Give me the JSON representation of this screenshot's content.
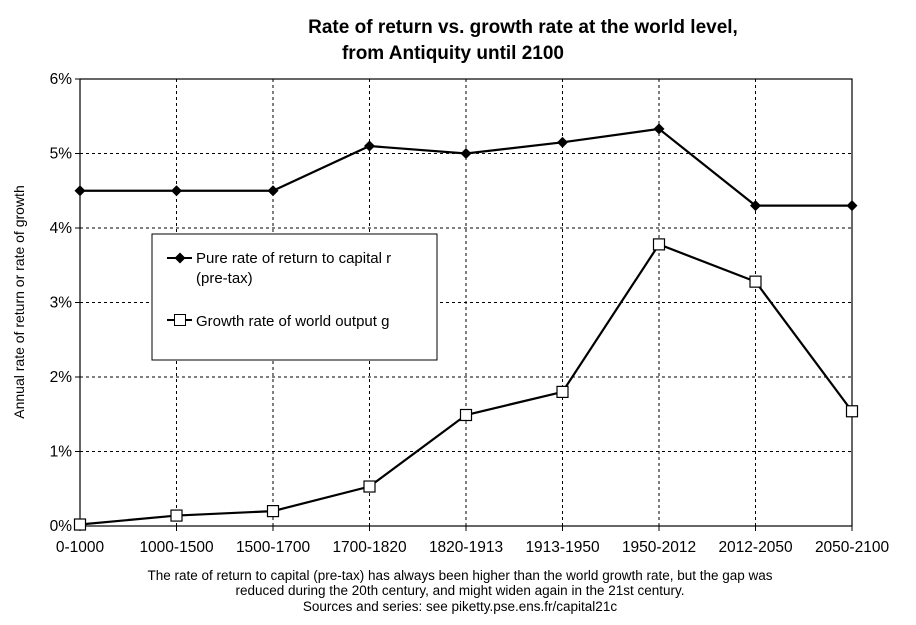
{
  "chart_data": {
    "type": "line",
    "title_line1": "Rate of return vs. growth rate at the world level,",
    "title_line2": "from Antiquity until 2100",
    "xlabel": "",
    "ylabel": "Annual rate of return or rate of growth",
    "categories": [
      "0-1000",
      "1000-1500",
      "1500-1700",
      "1700-1820",
      "1820-1913",
      "1913-1950",
      "1950-2012",
      "2012-2050",
      "2050-2100"
    ],
    "ylim": [
      0,
      6
    ],
    "y_ticks": [
      "0%",
      "1%",
      "2%",
      "3%",
      "4%",
      "5%",
      "6%"
    ],
    "grid": true,
    "legend_position": "center-left",
    "series": [
      {
        "name": "Pure rate of return to capital r",
        "name_line2": "(pre-tax)",
        "marker": "filled-diamond",
        "values": [
          4.5,
          4.5,
          4.5,
          5.1,
          5.0,
          5.15,
          5.33,
          4.3,
          4.3
        ]
      },
      {
        "name": "Growth rate of world output g",
        "marker": "hollow-square",
        "values": [
          0.02,
          0.14,
          0.2,
          0.53,
          1.49,
          1.8,
          3.78,
          3.28,
          1.54
        ]
      }
    ],
    "caption_line1": "The rate of return to capital (pre-tax) has always been higher than the world growth rate, but the gap was",
    "caption_line2": "reduced during the 20th century, and might widen again in the 21st century.",
    "caption_line3": "Sources and series: see piketty.pse.ens.fr/capital21c"
  },
  "colors": {
    "line": "#000000",
    "grid": "#000000",
    "background": "#ffffff"
  }
}
